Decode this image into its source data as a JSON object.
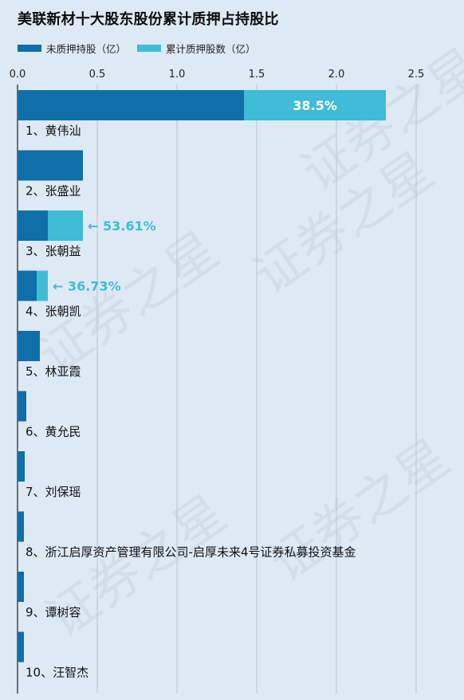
{
  "title": "美联新材十大股东股份累计质押占持股比",
  "watermark": "证券之星",
  "legend": [
    {
      "label": "未质押持股（亿）",
      "color": "#0f6fa8"
    },
    {
      "label": "累计质押股数（亿）",
      "color": "#3fbcd6"
    }
  ],
  "chart_data": {
    "type": "bar",
    "orientation": "horizontal",
    "stacked": true,
    "xlim": [
      0,
      2.5
    ],
    "xticks": [
      "0.0",
      "0.5",
      "1.0",
      "1.5",
      "2.0",
      "2.5"
    ],
    "grid": true,
    "categories": [
      "1、黄伟汕",
      "2、张盛业",
      "3、张朝益",
      "4、张朝凯",
      "5、林亚霞",
      "6、黄允民",
      "7、刘保瑶",
      "8、浙江启厚资产管理有限公司-启厚未来4号证券私募投资基金",
      "9、谭树容",
      "10、汪智杰"
    ],
    "series": [
      {
        "name": "未质押持股（亿）",
        "color": "#0f6fa8",
        "values": [
          1.42,
          0.41,
          0.19,
          0.12,
          0.14,
          0.055,
          0.045,
          0.04,
          0.04,
          0.04
        ]
      },
      {
        "name": "累计质押股数（亿）",
        "color": "#3fbcd6",
        "values": [
          0.89,
          0.0,
          0.22,
          0.07,
          0.0,
          0.0,
          0.0,
          0.0,
          0.0,
          0.0
        ]
      }
    ],
    "annotations": [
      {
        "category_index": 0,
        "text": "38.5%",
        "style": "inside"
      },
      {
        "category_index": 2,
        "text": "← 53.61%",
        "style": "outside"
      },
      {
        "category_index": 3,
        "text": "← 36.73%",
        "style": "outside"
      }
    ]
  }
}
